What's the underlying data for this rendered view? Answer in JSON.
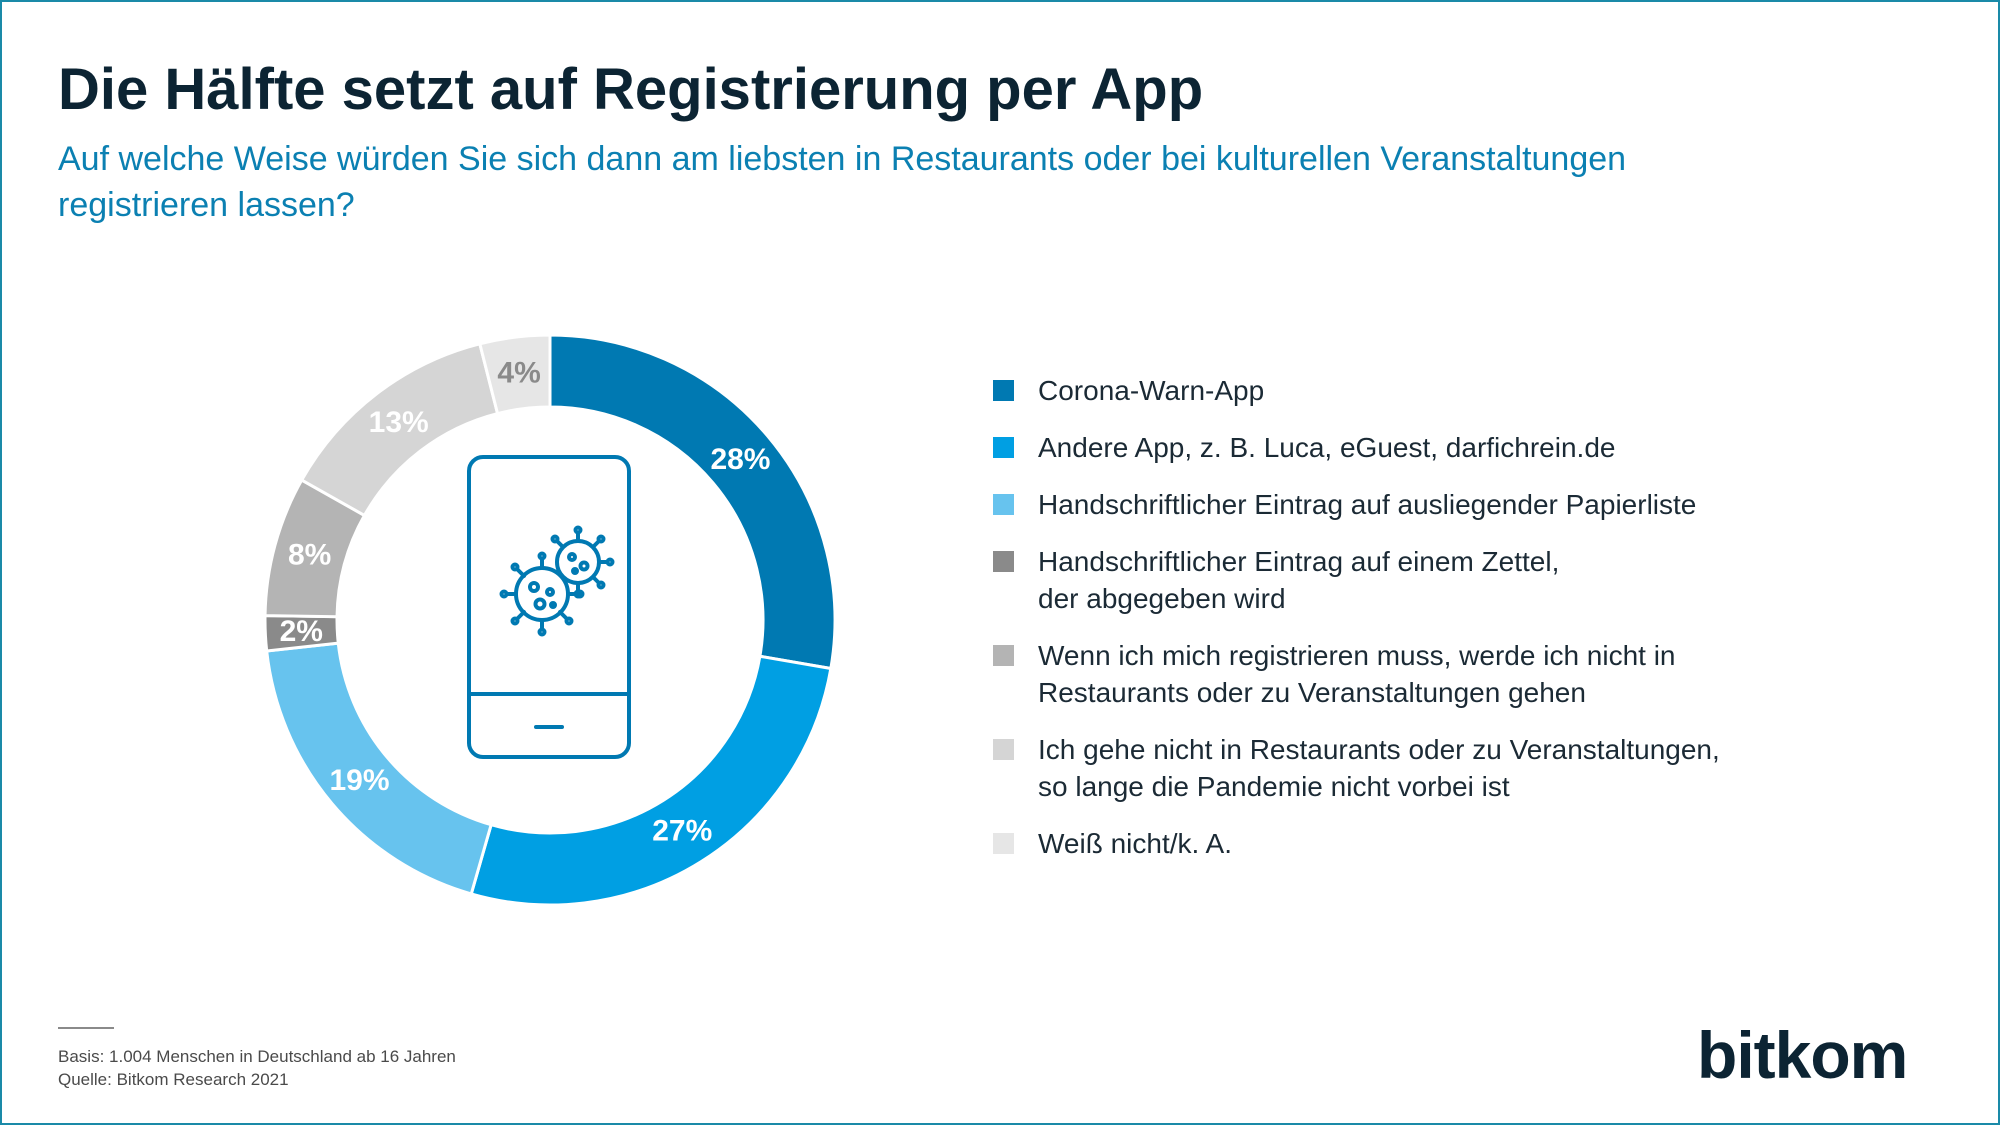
{
  "title": "Die Hälfte setzt auf Registrierung per App",
  "subtitle": "Auf welche Weise würden Sie sich dann am liebsten in Restaurants oder bei kulturellen Veranstaltungen registrieren lassen?",
  "chart_data": {
    "type": "pie",
    "variant": "donut",
    "categories": [
      "Corona-Warn-App",
      "Andere App, z. B. Luca, eGuest, darfichrein.de",
      "Handschriftlicher Eintrag auf ausliegender Papierliste",
      "Handschriftlicher Eintrag auf einem Zettel,\nder abgegeben wird",
      "Wenn ich mich registrieren muss, werde ich nicht in\nRestaurants oder zu Veranstaltungen gehen",
      "Ich gehe nicht in Restaurants oder zu Veranstaltungen,\nso lange die Pandemie nicht vorbei ist",
      "Weiß nicht/k. A."
    ],
    "values": [
      28,
      27,
      19,
      2,
      8,
      13,
      4
    ],
    "value_labels": [
      "28%",
      "27%",
      "19%",
      "2%",
      "8%",
      "13%",
      "4%"
    ],
    "colors": [
      "#0079b2",
      "#009fe3",
      "#67c3ee",
      "#8a8a8a",
      "#b4b4b4",
      "#d5d5d5",
      "#e6e6e6"
    ],
    "label_colors": [
      "#ffffff",
      "#ffffff",
      "#ffffff",
      "#ffffff",
      "#ffffff",
      "#ffffff",
      "#8a8a8a"
    ],
    "start_angle": "12 o'clock",
    "direction": "clockwise",
    "legend_position": "right",
    "center_icon": "smartphone-virus-icon"
  },
  "footer": {
    "basis": "Basis: 1.004 Menschen in Deutschland ab 16 Jahren",
    "source": "Quelle: Bitkom Research 2021"
  },
  "brand": "bitkom"
}
